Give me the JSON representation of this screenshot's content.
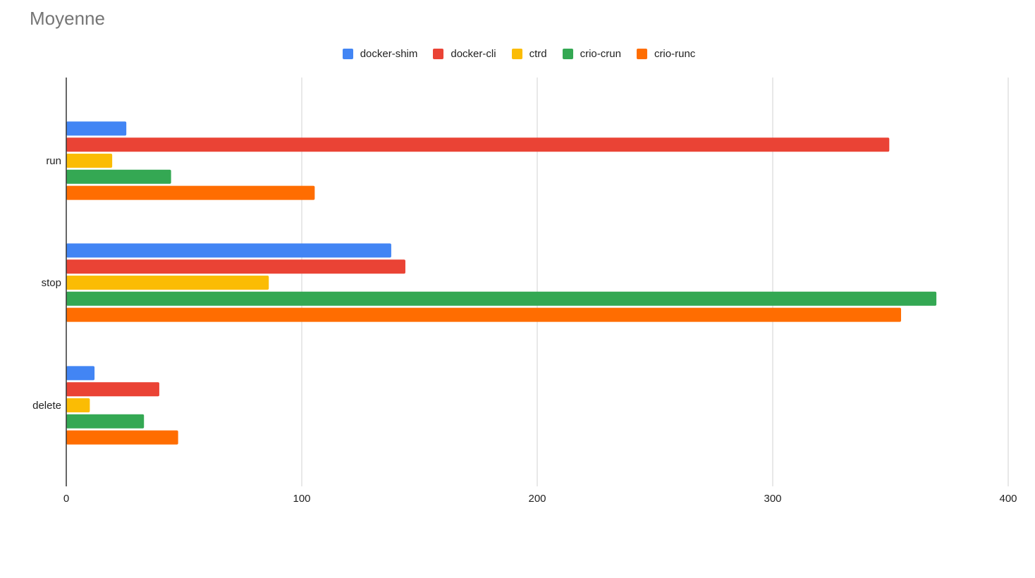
{
  "chart_data": {
    "type": "bar",
    "orientation": "horizontal",
    "title": "Moyenne",
    "xlabel": "",
    "ylabel": "",
    "categories": [
      "run",
      "stop",
      "delete"
    ],
    "xlim": [
      0,
      400
    ],
    "x_ticks": [
      "0",
      "100",
      "200",
      "300",
      "400"
    ],
    "grid": true,
    "legend_position": "top",
    "series": [
      {
        "name": "docker-shim",
        "color": "#4285F4",
        "values": [
          25.5,
          138,
          12
        ]
      },
      {
        "name": "docker-cli",
        "color": "#EA4335",
        "values": [
          349.5,
          144,
          39.5
        ]
      },
      {
        "name": "ctrd",
        "color": "#FBBC04",
        "values": [
          19.5,
          86,
          10
        ]
      },
      {
        "name": "crio-crun",
        "color": "#34A853",
        "values": [
          44.5,
          369.5,
          33
        ]
      },
      {
        "name": "crio-runc",
        "color": "#FF6D01",
        "values": [
          105.5,
          354.5,
          47.5
        ]
      }
    ]
  }
}
